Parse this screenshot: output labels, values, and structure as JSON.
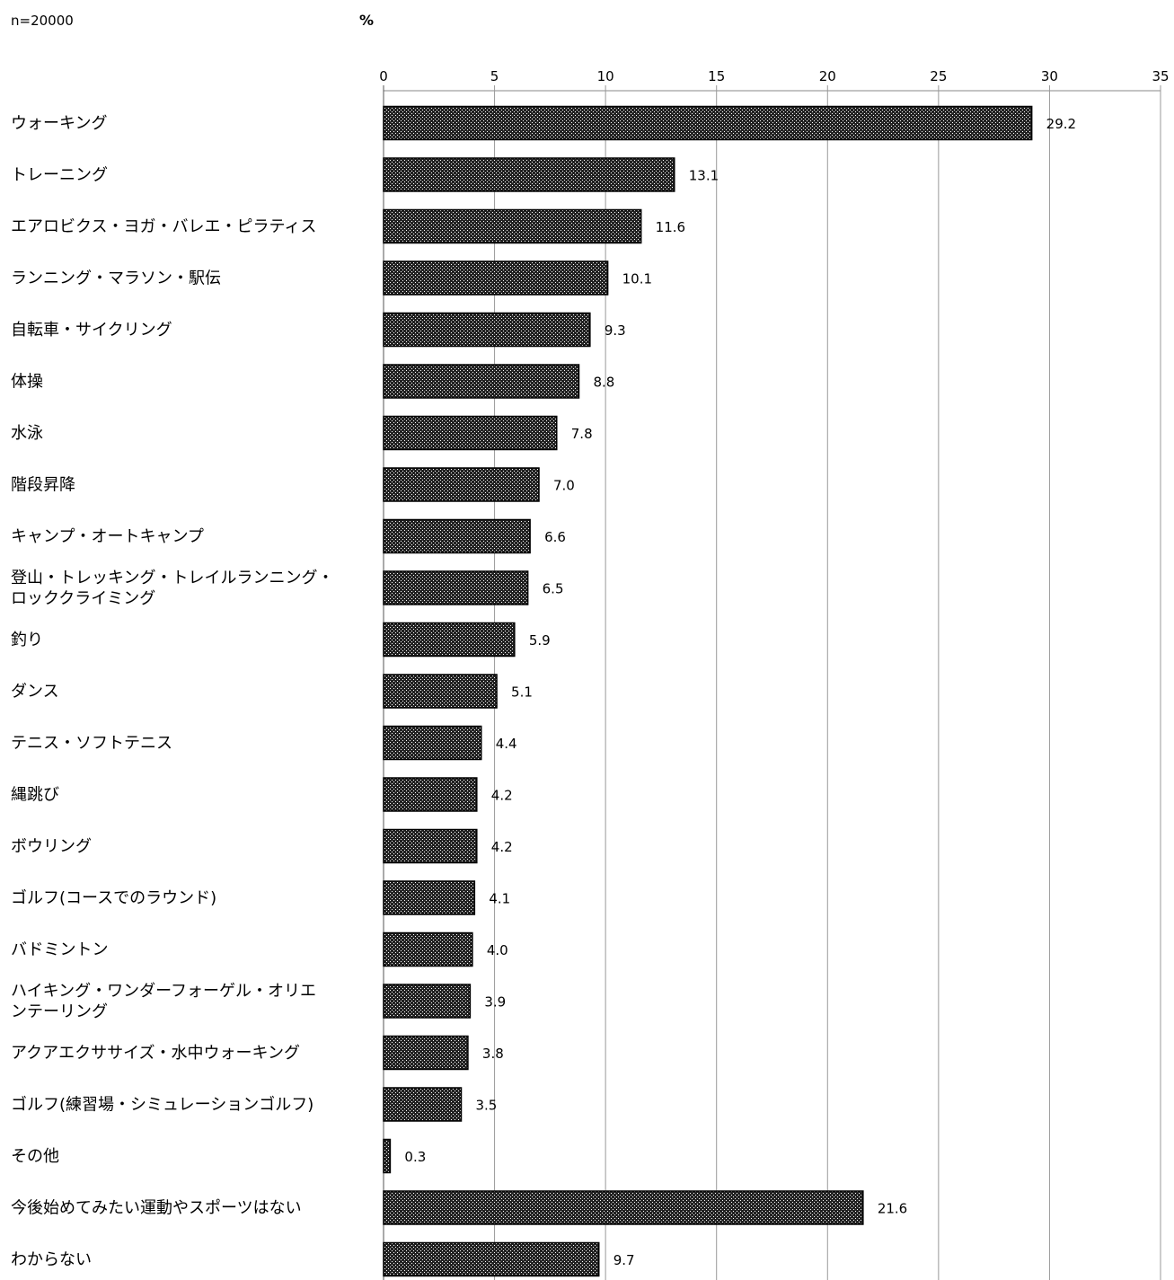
{
  "header": {
    "sample": "n=20000",
    "unit": "%"
  },
  "chart_data": {
    "type": "bar",
    "orientation": "horizontal",
    "title": "",
    "xlabel": "%",
    "ylabel": "",
    "xlim": [
      0,
      35
    ],
    "ticks": [
      0,
      5,
      10,
      15,
      20,
      25,
      30,
      35
    ],
    "grid": true,
    "bar_fill": "#222222",
    "bar_pattern": "dotted",
    "categories": [
      [
        "ウォーキング"
      ],
      [
        "トレーニング"
      ],
      [
        "エアロビクス・ヨガ・バレエ・ピラティス"
      ],
      [
        "ランニング・マラソン・駅伝"
      ],
      [
        "自転車・サイクリング"
      ],
      [
        "体操"
      ],
      [
        "水泳"
      ],
      [
        "階段昇降"
      ],
      [
        "キャンプ・オートキャンプ"
      ],
      [
        "登山・トレッキング・トレイルランニング・",
        "ロッククライミング"
      ],
      [
        "釣り"
      ],
      [
        "ダンス"
      ],
      [
        "テニス・ソフトテニス"
      ],
      [
        "縄跳び"
      ],
      [
        "ボウリング"
      ],
      [
        "ゴルフ(コースでのラウンド)"
      ],
      [
        "バドミントン"
      ],
      [
        "ハイキング・ワンダーフォーゲル・オリエ",
        "ンテーリング"
      ],
      [
        "アクアエクササイズ・水中ウォーキング"
      ],
      [
        "ゴルフ(練習場・シミュレーションゴルフ)"
      ],
      [
        "その他"
      ],
      [
        "今後始めてみたい運動やスポーツはない"
      ],
      [
        "わからない"
      ]
    ],
    "values": [
      29.2,
      13.1,
      11.6,
      10.1,
      9.3,
      8.8,
      7.8,
      7.0,
      6.6,
      6.5,
      5.9,
      5.1,
      4.4,
      4.2,
      4.2,
      4.1,
      4.0,
      3.9,
      3.8,
      3.5,
      0.3,
      21.6,
      9.7
    ],
    "value_labels": [
      "29.2",
      "13.1",
      "11.6",
      "10.1",
      "9.3",
      "8.8",
      "7.8",
      "7.0",
      "6.6",
      "6.5",
      "5.9",
      "5.1",
      "4.4",
      "4.2",
      "4.2",
      "4.1",
      "4.0",
      "3.9",
      "3.8",
      "3.5",
      "0.3",
      "21.6",
      "9.7"
    ]
  }
}
